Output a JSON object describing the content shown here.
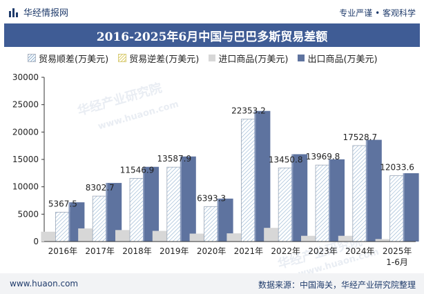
{
  "header": {
    "brand": "华经情报网",
    "tagline": "专业严谨 • 客观科学",
    "title": "2016-2025年6月中国与巴巴多斯贸易差额"
  },
  "legend": {
    "surplus": "贸易顺差(万美元)",
    "deficit": "贸易逆差(万美元)",
    "import": "进口商品(万美元)",
    "export": "出口商品(万美元)"
  },
  "footer": {
    "left": "www.huaon.com",
    "right": "数据来源：中国海关，华经产业研究院整理"
  },
  "watermarks": [
    "华经产业研究院",
    "www.huaon.com",
    "华经产业研究院",
    "www.huaon.com"
  ],
  "colors": {
    "export": "#5e739f",
    "import": "#d7d7d7",
    "surplus_stroke": "#9aa6b8",
    "surplus_hatch": "#8fb0cf",
    "axis": "#333333",
    "title_bg": "#3f5c95"
  },
  "chart_data": {
    "type": "bar",
    "categories": [
      "2016年",
      "2017年",
      "2018年",
      "2019年",
      "2020年",
      "2021年",
      "2022年",
      "2023年",
      "2024年",
      "2025年\n1-6月"
    ],
    "ylim": [
      0,
      30000
    ],
    "yticks": [
      0,
      5000,
      10000,
      15000,
      20000,
      25000,
      30000
    ],
    "series": [
      {
        "name": "进口商品(万美元)",
        "values": [
          1800,
          2400,
          2100,
          1950,
          1450,
          1500,
          2500,
          1050,
          1050,
          450
        ]
      },
      {
        "name": "贸易顺差(万美元)",
        "values": [
          5367.5,
          8302.7,
          11546.9,
          13587.9,
          6393.3,
          22353.2,
          13450.8,
          13969.8,
          17528.7,
          12033.6
        ]
      },
      {
        "name": "出口商品(万美元)",
        "values": [
          7167.5,
          10702.7,
          13646.9,
          15537.9,
          7843.3,
          23853.2,
          15950.8,
          15019.8,
          18578.7,
          12483.6
        ]
      }
    ],
    "data_labels": [
      "5367.5",
      "8302.7",
      "11546.9",
      "13587.9",
      "6393.3",
      "22353.2",
      "13450.8",
      "13969.8",
      "17528.7",
      "12033.6"
    ]
  }
}
